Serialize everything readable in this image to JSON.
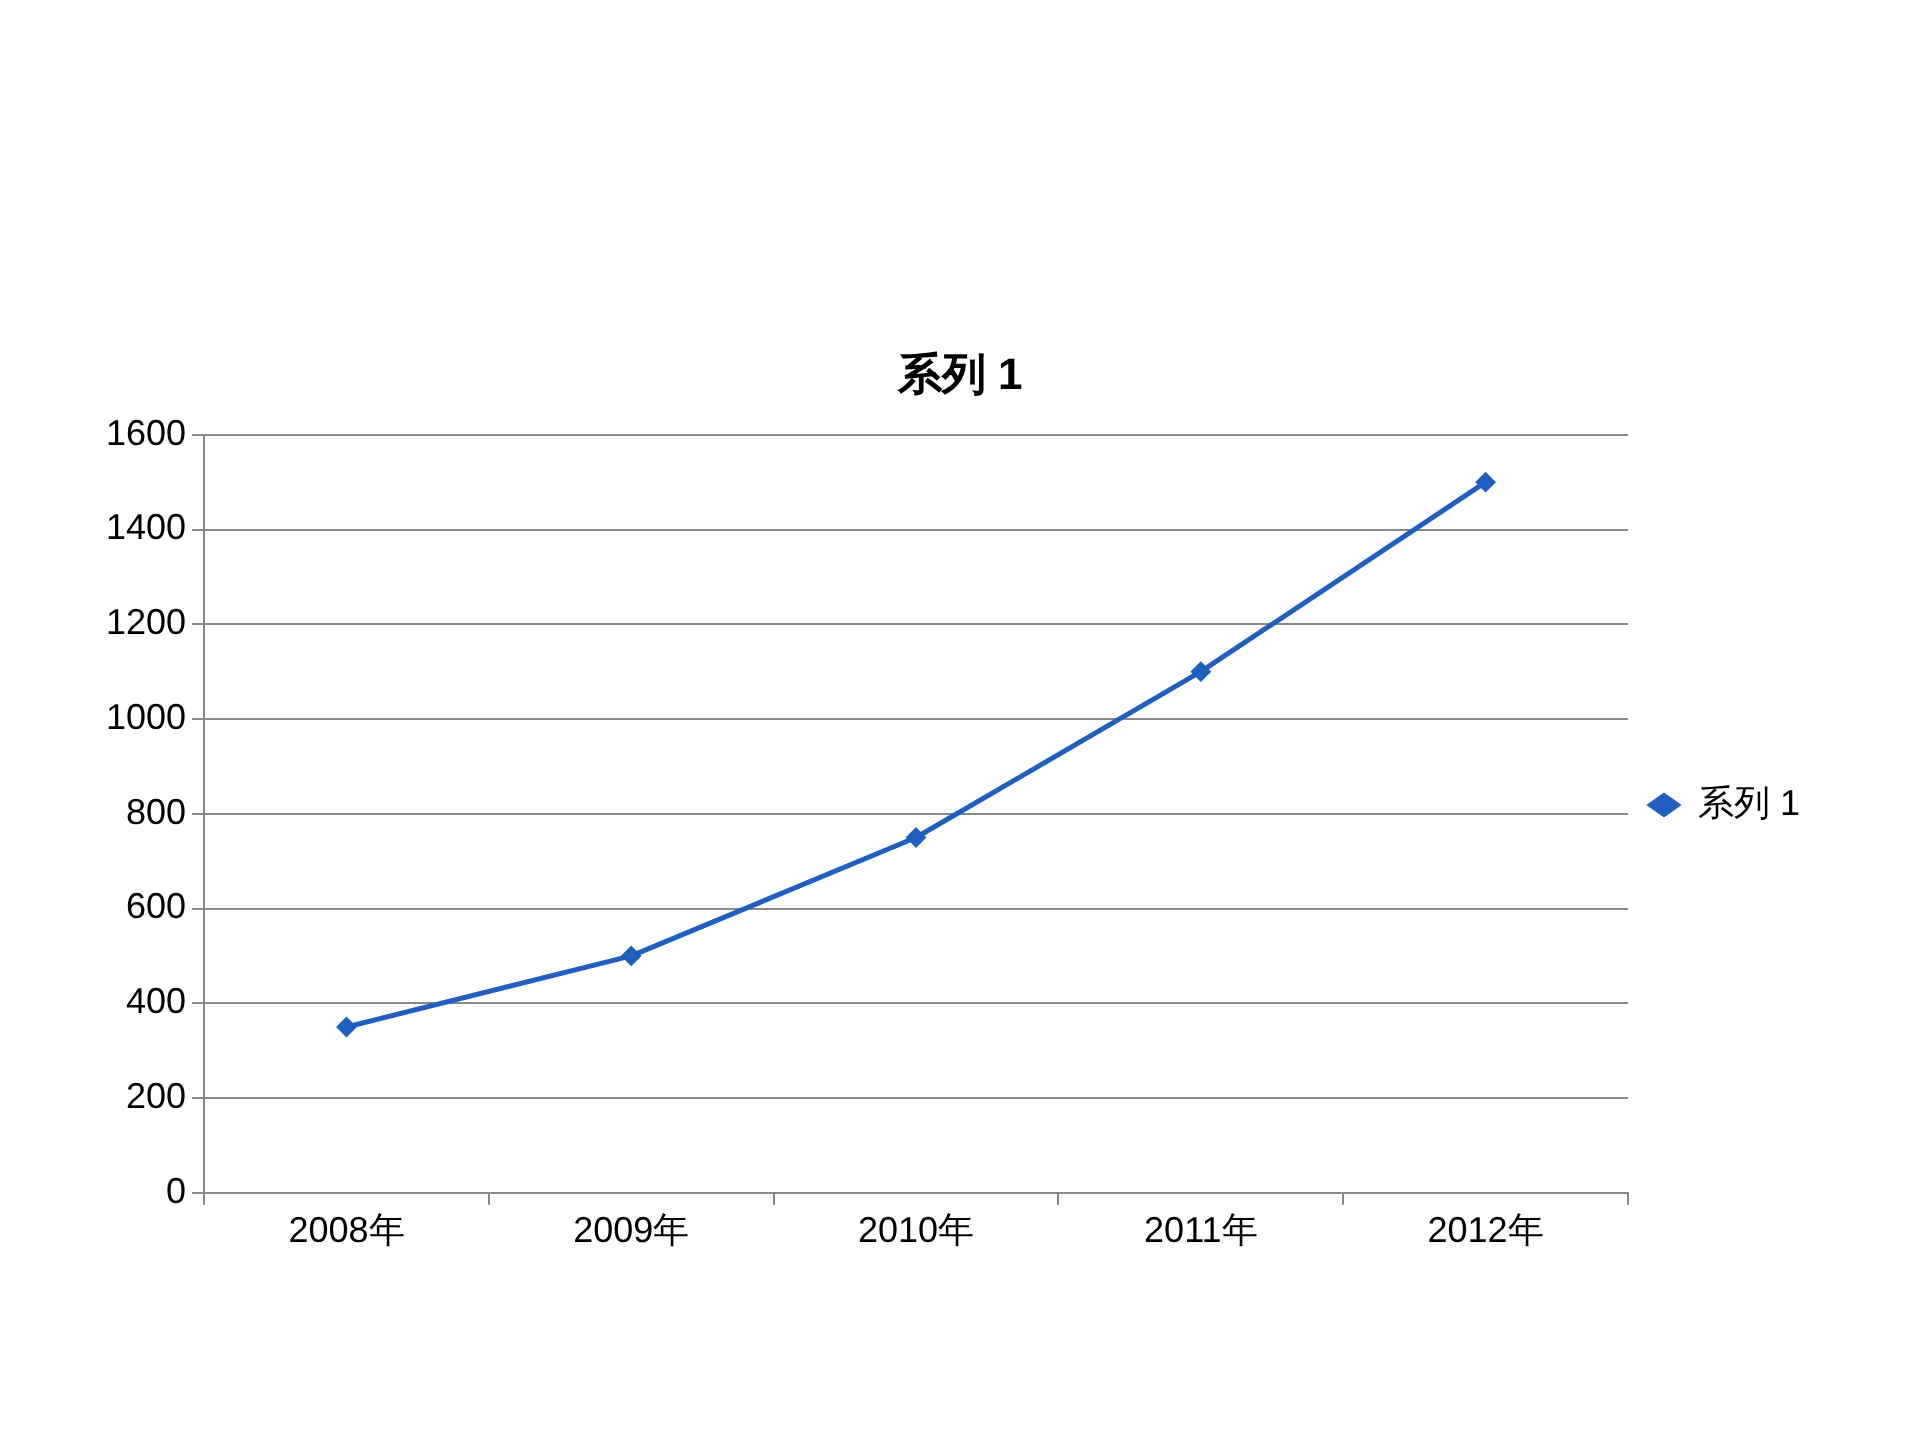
{
  "chart_data": {
    "type": "line",
    "title": "系列 1",
    "categories": [
      "2008年",
      "2009年",
      "2010年",
      "2011年",
      "2012年"
    ],
    "series": [
      {
        "name": "系列 1",
        "color": "#1f5fbf",
        "values": [
          350,
          500,
          750,
          1100,
          1500
        ]
      }
    ],
    "ylim": [
      0,
      1600
    ],
    "yticks": [
      0,
      200,
      400,
      600,
      800,
      1000,
      1200,
      1400,
      1600
    ],
    "grid": "y",
    "legend": "right",
    "marker": "diamond",
    "line_style": "solid"
  }
}
